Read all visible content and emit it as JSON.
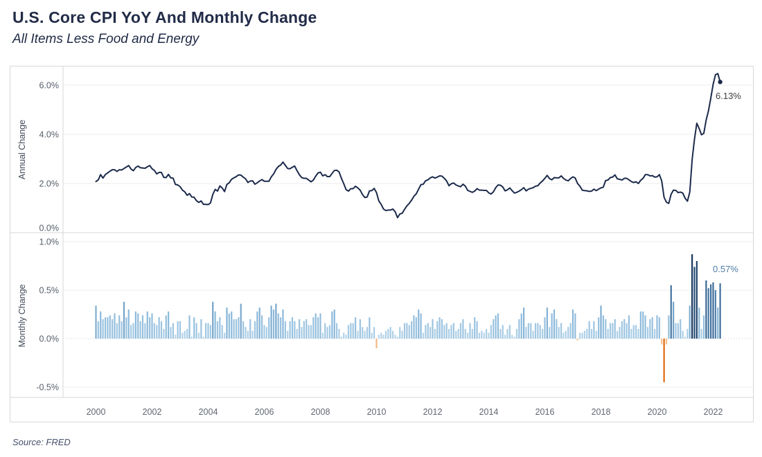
{
  "header": {
    "title": "U.S. Core CPI YoY And Monthly Change",
    "subtitle": "All Items Less Food and Energy"
  },
  "source": "Source: FRED",
  "colors": {
    "line": "#1b2a4b",
    "gridline": "#ececec",
    "frame": "#d7d7d7",
    "zero_dotted": "#c6c6c6",
    "tick_label": "#555e6a",
    "year_label": "#5f6670",
    "annotation_yoy": "#3f3f3f",
    "annotation_mom": "#4e7ca6",
    "bar_positive_stops": [
      [
        0,
        "#bcd9ec"
      ],
      [
        0.3,
        "#8ab8da"
      ],
      [
        0.55,
        "#41729f"
      ],
      [
        0.88,
        "#16355c"
      ]
    ],
    "bar_negative_stops": [
      [
        0,
        "#f7cfa5"
      ],
      [
        0.45,
        "#e2690c"
      ]
    ]
  },
  "x_axis": {
    "start_month": "2000-01",
    "end_month": "2022-04",
    "tick_years": [
      "2000",
      "2002",
      "2004",
      "2006",
      "2008",
      "2010",
      "2012",
      "2014",
      "2016",
      "2018",
      "2020",
      "2022"
    ]
  },
  "chart_data": [
    {
      "type": "line",
      "title": "U.S. Core CPI YoY",
      "ylabel": "Annual Change",
      "unit": "%",
      "yticks": [
        6.0,
        4.0,
        2.0,
        0.0
      ],
      "ylim": [
        0.0,
        6.8
      ],
      "grid": true,
      "annotation": {
        "label": "6.13%",
        "value": 6.13,
        "month": "2022-04"
      },
      "values": [
        2.08,
        2.15,
        2.36,
        2.22,
        2.36,
        2.43,
        2.5,
        2.56,
        2.56,
        2.49,
        2.56,
        2.55,
        2.61,
        2.67,
        2.73,
        2.59,
        2.52,
        2.65,
        2.71,
        2.64,
        2.63,
        2.62,
        2.68,
        2.73,
        2.6,
        2.53,
        2.39,
        2.45,
        2.45,
        2.25,
        2.24,
        2.37,
        2.23,
        2.22,
        1.96,
        1.94,
        1.87,
        1.73,
        1.66,
        1.52,
        1.59,
        1.45,
        1.44,
        1.3,
        1.23,
        1.29,
        1.15,
        1.15,
        1.14,
        1.21,
        1.56,
        1.76,
        1.69,
        1.9,
        1.82,
        1.67,
        1.96,
        2.03,
        2.17,
        2.23,
        2.28,
        2.35,
        2.34,
        2.26,
        2.19,
        2.04,
        2.1,
        2.11,
        1.97,
        2.03,
        2.1,
        2.16,
        2.09,
        2.09,
        2.09,
        2.27,
        2.39,
        2.57,
        2.69,
        2.75,
        2.87,
        2.74,
        2.61,
        2.6,
        2.66,
        2.71,
        2.52,
        2.36,
        2.24,
        2.21,
        2.21,
        2.14,
        2.07,
        2.14,
        2.3,
        2.43,
        2.46,
        2.31,
        2.36,
        2.28,
        2.28,
        2.41,
        2.53,
        2.54,
        2.47,
        2.21,
        1.99,
        1.75,
        1.69,
        1.79,
        1.79,
        1.89,
        1.82,
        1.73,
        1.55,
        1.43,
        1.45,
        1.7,
        1.71,
        1.8,
        1.63,
        1.29,
        1.15,
        0.96,
        0.9,
        0.92,
        0.92,
        0.96,
        0.85,
        0.61,
        0.76,
        0.79,
        0.95,
        1.09,
        1.19,
        1.32,
        1.48,
        1.58,
        1.77,
        1.95,
        1.97,
        2.11,
        2.15,
        2.23,
        2.27,
        2.22,
        2.26,
        2.31,
        2.3,
        2.21,
        2.1,
        1.91,
        1.99,
        2.02,
        1.94,
        1.9,
        1.87,
        1.97,
        1.89,
        1.72,
        1.68,
        1.64,
        1.69,
        1.79,
        1.73,
        1.73,
        1.72,
        1.72,
        1.62,
        1.57,
        1.66,
        1.83,
        1.94,
        1.93,
        1.86,
        1.7,
        1.74,
        1.82,
        1.71,
        1.61,
        1.64,
        1.69,
        1.75,
        1.83,
        1.7,
        1.77,
        1.8,
        1.83,
        1.89,
        1.91,
        2.02,
        2.1,
        2.21,
        2.33,
        2.2,
        2.15,
        2.24,
        2.23,
        2.23,
        2.31,
        2.21,
        2.14,
        2.11,
        2.2,
        2.27,
        2.22,
        2.0,
        1.89,
        1.73,
        1.71,
        1.7,
        1.68,
        1.69,
        1.77,
        1.71,
        1.77,
        1.82,
        1.85,
        2.12,
        2.14,
        2.24,
        2.26,
        2.35,
        2.19,
        2.17,
        2.14,
        2.21,
        2.21,
        2.15,
        2.08,
        2.04,
        2.07,
        2.0,
        2.13,
        2.21,
        2.36,
        2.36,
        2.31,
        2.32,
        2.26,
        2.27,
        2.36,
        2.1,
        1.44,
        1.24,
        1.19,
        1.56,
        1.73,
        1.72,
        1.63,
        1.65,
        1.61,
        1.4,
        1.28,
        1.65,
        2.96,
        3.8,
        4.45,
        4.24,
        3.98,
        4.04,
        4.58,
        4.96,
        5.48,
        6.04,
        6.43,
        6.47,
        6.13
      ]
    },
    {
      "type": "bar",
      "title": "U.S. Core CPI Monthly Change",
      "ylabel": "Monthly Change",
      "unit": "%",
      "yticks": [
        1.0,
        0.5,
        0.0,
        -0.5
      ],
      "ylim": [
        -0.61,
        1.09
      ],
      "grid": true,
      "annotation": {
        "label": "0.57%",
        "value": 0.57,
        "month": "2022-04"
      },
      "values": [
        0.34,
        0.18,
        0.28,
        0.2,
        0.22,
        0.22,
        0.24,
        0.2,
        0.26,
        0.16,
        0.24,
        0.18,
        0.38,
        0.22,
        0.3,
        0.14,
        0.16,
        0.28,
        0.26,
        0.18,
        0.24,
        0.16,
        0.28,
        0.22,
        0.26,
        0.16,
        0.14,
        0.22,
        0.18,
        0.1,
        0.24,
        0.28,
        0.12,
        0.16,
        0.04,
        0.18,
        0.18,
        0.06,
        0.08,
        0.1,
        0.24,
        0.02,
        0.22,
        0.16,
        0.06,
        0.2,
        0.02,
        0.16,
        0.16,
        0.14,
        0.38,
        0.28,
        0.18,
        0.22,
        0.14,
        0.06,
        0.32,
        0.26,
        0.28,
        0.2,
        0.2,
        0.22,
        0.36,
        0.18,
        0.12,
        0.08,
        0.2,
        0.08,
        0.18,
        0.28,
        0.32,
        0.24,
        0.14,
        0.12,
        0.22,
        0.34,
        0.3,
        0.36,
        0.26,
        0.22,
        0.3,
        0.18,
        0.08,
        0.18,
        0.22,
        0.18,
        0.1,
        0.2,
        0.12,
        0.18,
        0.2,
        0.14,
        0.14,
        0.22,
        0.26,
        0.22,
        0.26,
        0.06,
        0.16,
        0.12,
        0.14,
        0.28,
        0.3,
        0.16,
        0.1,
        0.02,
        0.06,
        0.04,
        0.14,
        0.16,
        0.16,
        0.22,
        0.08,
        0.2,
        0.12,
        0.08,
        0.12,
        0.22,
        0.06,
        0.12,
        -0.1,
        0.04,
        0.06,
        0.04,
        0.08,
        0.1,
        0.12,
        0.08,
        0.04,
        0.02,
        0.12,
        0.08,
        0.16,
        0.16,
        0.14,
        0.18,
        0.24,
        0.22,
        0.3,
        0.26,
        0.06,
        0.14,
        0.16,
        0.12,
        0.2,
        0.1,
        0.18,
        0.22,
        0.2,
        0.14,
        0.16,
        0.1,
        0.14,
        0.16,
        0.08,
        0.1,
        0.16,
        0.2,
        0.1,
        0.06,
        0.16,
        0.1,
        0.22,
        0.18,
        0.06,
        0.08,
        0.06,
        0.1,
        0.06,
        0.14,
        0.2,
        0.24,
        0.26,
        0.1,
        0.14,
        0.04,
        0.1,
        0.14,
        0.04,
        0.02,
        0.1,
        0.2,
        0.26,
        0.32,
        0.12,
        0.16,
        0.16,
        0.08,
        0.16,
        0.16,
        0.14,
        0.1,
        0.22,
        0.32,
        0.12,
        0.26,
        0.3,
        0.2,
        0.12,
        0.16,
        0.06,
        0.08,
        0.12,
        0.16,
        0.3,
        0.26,
        -0.02,
        0.06,
        0.06,
        0.08,
        0.1,
        0.18,
        0.1,
        0.18,
        0.08,
        0.22,
        0.34,
        0.24,
        0.2,
        0.1,
        0.16,
        0.16,
        0.2,
        0.08,
        0.12,
        0.18,
        0.2,
        0.16,
        0.24,
        0.1,
        0.14,
        0.14,
        0.1,
        0.28,
        0.28,
        0.24,
        0.12,
        0.2,
        0.22,
        0.1,
        0.24,
        0.22,
        -0.06,
        -0.45,
        -0.06,
        0.24,
        0.55,
        0.38,
        0.16,
        0.16,
        0.2,
        0.08,
        0.02,
        0.1,
        0.34,
        0.87,
        0.74,
        0.8,
        0.32,
        0.1,
        0.24,
        0.6,
        0.52,
        0.56,
        0.58,
        0.5,
        0.32,
        0.57
      ]
    }
  ]
}
